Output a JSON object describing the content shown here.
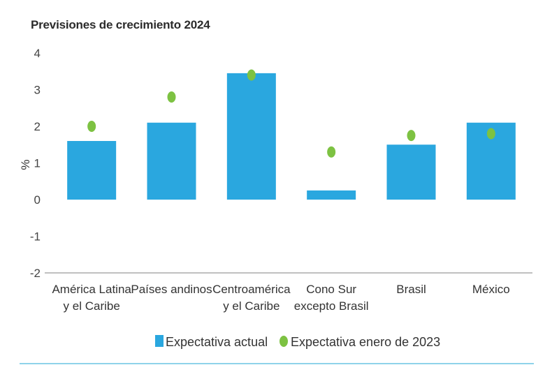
{
  "chart_data": {
    "type": "bar",
    "title": "Previsiones de crecimiento 2024",
    "ylabel": "%",
    "xlabel": "",
    "ylim": [
      -2,
      4
    ],
    "yticks": [
      "4",
      "3",
      "2",
      "1",
      "0",
      "-1",
      "-2"
    ],
    "categories": [
      [
        "América Latina",
        "y el Caribe"
      ],
      [
        "Países andinos"
      ],
      [
        "Centroamérica",
        "y el Caribe"
      ],
      [
        "Cono Sur",
        "excepto Brasil"
      ],
      [
        "Brasil"
      ],
      [
        "México"
      ]
    ],
    "series": [
      {
        "name": "Expectativa actual",
        "kind": "bar",
        "color": "#2aa7df",
        "values": [
          1.6,
          2.1,
          3.45,
          0.25,
          1.5,
          2.1
        ]
      },
      {
        "name": "Expectativa enero de 2023",
        "kind": "point",
        "color": "#7dc242",
        "values": [
          2.0,
          2.8,
          3.4,
          1.3,
          1.75,
          1.8
        ]
      }
    ],
    "legend": [
      "Expectativa actual",
      "Expectativa enero de 2023"
    ],
    "legend_position": "bottom"
  }
}
